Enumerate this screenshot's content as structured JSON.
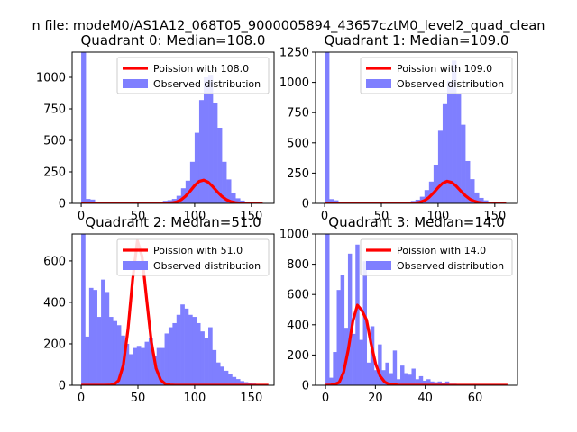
{
  "figure": {
    "suptitle": "n file: modeM0/AS1A12_068T05_9000005894_43657cztM0_level2_quad_clean"
  },
  "legend_labels": {
    "observed": "Observed distribution"
  },
  "colors": {
    "poisson": "#ff0000",
    "observed": "#7f7fff",
    "axes": "#000000"
  },
  "chart_data": [
    {
      "type": "bar",
      "title": "Quadrant 0: Median=108.0",
      "legend": {
        "position": "top-right",
        "poisson_label": "Poission with 108.0",
        "observed_label": "Observed distribution"
      },
      "xlim": [
        -8,
        170
      ],
      "ylim": [
        0,
        1200
      ],
      "xticks": [
        0,
        50,
        100,
        150
      ],
      "yticks": [
        0,
        250,
        500,
        750,
        1000
      ],
      "bin_width": 4,
      "bins": [
        [
          0,
          1200
        ],
        [
          4,
          35
        ],
        [
          8,
          30
        ],
        [
          12,
          10
        ],
        [
          16,
          8
        ],
        [
          20,
          8
        ],
        [
          24,
          6
        ],
        [
          28,
          6
        ],
        [
          32,
          5
        ],
        [
          36,
          5
        ],
        [
          40,
          5
        ],
        [
          44,
          5
        ],
        [
          48,
          5
        ],
        [
          52,
          6
        ],
        [
          56,
          5
        ],
        [
          60,
          8
        ],
        [
          64,
          10
        ],
        [
          68,
          12
        ],
        [
          72,
          20
        ],
        [
          76,
          25
        ],
        [
          80,
          35
        ],
        [
          84,
          60
        ],
        [
          88,
          120
        ],
        [
          92,
          180
        ],
        [
          96,
          330
        ],
        [
          100,
          560
        ],
        [
          104,
          820
        ],
        [
          108,
          1000
        ],
        [
          112,
          1020
        ],
        [
          116,
          800
        ],
        [
          120,
          600
        ],
        [
          124,
          330
        ],
        [
          128,
          190
        ],
        [
          132,
          80
        ],
        [
          136,
          40
        ],
        [
          140,
          22
        ],
        [
          144,
          12
        ],
        [
          148,
          8
        ],
        [
          152,
          5
        ]
      ],
      "poisson": {
        "mean": 108,
        "scale": 4800,
        "x_range": [
          0,
          160
        ]
      }
    },
    {
      "type": "bar",
      "title": "Quadrant 1: Median=109.0",
      "legend": {
        "position": "top-right",
        "poisson_label": "Poission with 109.0",
        "observed_label": "Observed distribution"
      },
      "xlim": [
        -8,
        170
      ],
      "ylim": [
        0,
        1250
      ],
      "xticks": [
        0,
        50,
        100,
        150
      ],
      "yticks": [
        0,
        250,
        500,
        750,
        1000,
        1250
      ],
      "bin_width": 4,
      "bins": [
        [
          0,
          1250
        ],
        [
          4,
          35
        ],
        [
          8,
          25
        ],
        [
          12,
          10
        ],
        [
          16,
          8
        ],
        [
          20,
          6
        ],
        [
          24,
          6
        ],
        [
          28,
          5
        ],
        [
          32,
          5
        ],
        [
          36,
          5
        ],
        [
          40,
          5
        ],
        [
          44,
          5
        ],
        [
          48,
          5
        ],
        [
          52,
          6
        ],
        [
          56,
          6
        ],
        [
          60,
          8
        ],
        [
          64,
          10
        ],
        [
          68,
          12
        ],
        [
          72,
          15
        ],
        [
          76,
          20
        ],
        [
          80,
          30
        ],
        [
          84,
          55
        ],
        [
          88,
          110
        ],
        [
          92,
          180
        ],
        [
          96,
          320
        ],
        [
          100,
          600
        ],
        [
          104,
          820
        ],
        [
          108,
          1010
        ],
        [
          112,
          1180
        ],
        [
          116,
          900
        ],
        [
          120,
          650
        ],
        [
          124,
          350
        ],
        [
          128,
          200
        ],
        [
          132,
          90
        ],
        [
          136,
          45
        ],
        [
          140,
          25
        ],
        [
          144,
          12
        ],
        [
          148,
          8
        ],
        [
          152,
          5
        ]
      ],
      "poisson": {
        "mean": 109,
        "scale": 4800,
        "x_range": [
          0,
          160
        ]
      }
    },
    {
      "type": "bar",
      "title": "Quadrant 2: Median=51.0",
      "legend": {
        "position": "top-right",
        "poisson_label": "Poission with 51.0",
        "observed_label": "Observed distribution"
      },
      "xlim": [
        -8,
        170
      ],
      "ylim": [
        0,
        730
      ],
      "xticks": [
        0,
        50,
        100,
        150
      ],
      "yticks": [
        0,
        200,
        400,
        600
      ],
      "bin_width": 3.5,
      "bins": [
        [
          0,
          730
        ],
        [
          3.5,
          235
        ],
        [
          7,
          470
        ],
        [
          10.5,
          460
        ],
        [
          14,
          330
        ],
        [
          17.5,
          510
        ],
        [
          21,
          450
        ],
        [
          24.5,
          330
        ],
        [
          28,
          310
        ],
        [
          31.5,
          290
        ],
        [
          35,
          240
        ],
        [
          38.5,
          200
        ],
        [
          42,
          150
        ],
        [
          45.5,
          180
        ],
        [
          49,
          190
        ],
        [
          52.5,
          180
        ],
        [
          56,
          210
        ],
        [
          59.5,
          230
        ],
        [
          63,
          140
        ],
        [
          66.5,
          180
        ],
        [
          70,
          180
        ],
        [
          73.5,
          250
        ],
        [
          77,
          280
        ],
        [
          80.5,
          300
        ],
        [
          84,
          340
        ],
        [
          87.5,
          390
        ],
        [
          91,
          370
        ],
        [
          94.5,
          340
        ],
        [
          98,
          330
        ],
        [
          101.5,
          300
        ],
        [
          105,
          260
        ],
        [
          108.5,
          230
        ],
        [
          112,
          280
        ],
        [
          115.5,
          170
        ],
        [
          119,
          110
        ],
        [
          122.5,
          90
        ],
        [
          126,
          70
        ],
        [
          129.5,
          55
        ],
        [
          133,
          40
        ],
        [
          136.5,
          30
        ],
        [
          140,
          20
        ],
        [
          143.5,
          15
        ],
        [
          147,
          10
        ],
        [
          150.5,
          8
        ],
        [
          154,
          5
        ],
        [
          157.5,
          4
        ],
        [
          161,
          3
        ]
      ],
      "poisson": {
        "mean": 51,
        "scale": 12500,
        "x_range": [
          0,
          165
        ]
      }
    },
    {
      "type": "bar",
      "title": "Quadrant 3: Median=14.0",
      "legend": {
        "position": "top-right",
        "poisson_label": "Poission with 14.0",
        "observed_label": "Observed distribution"
      },
      "xlim": [
        -4,
        77
      ],
      "ylim": [
        0,
        1000
      ],
      "xticks": [
        0,
        20,
        40,
        60
      ],
      "yticks": [
        0,
        200,
        400,
        600,
        800,
        1000
      ],
      "bin_width": 1.5,
      "bins": [
        [
          0,
          1000
        ],
        [
          1.5,
          50
        ],
        [
          3,
          220
        ],
        [
          4.5,
          630
        ],
        [
          6,
          730
        ],
        [
          7.5,
          380
        ],
        [
          9,
          870
        ],
        [
          10.5,
          340
        ],
        [
          12,
          930
        ],
        [
          13.5,
          300
        ],
        [
          15,
          820
        ],
        [
          16.5,
          150
        ],
        [
          18,
          390
        ],
        [
          19.5,
          100
        ],
        [
          21,
          270
        ],
        [
          22.5,
          100
        ],
        [
          24,
          150
        ],
        [
          25.5,
          80
        ],
        [
          27,
          230
        ],
        [
          28.5,
          40
        ],
        [
          30,
          130
        ],
        [
          31.5,
          80
        ],
        [
          33,
          70
        ],
        [
          34.5,
          110
        ],
        [
          36,
          40
        ],
        [
          37.5,
          60
        ],
        [
          39,
          30
        ],
        [
          40.5,
          40
        ],
        [
          42,
          25
        ],
        [
          43.5,
          20
        ],
        [
          45,
          25
        ],
        [
          46.5,
          15
        ],
        [
          48,
          25
        ],
        [
          49.5,
          10
        ],
        [
          51,
          10
        ],
        [
          52.5,
          8
        ],
        [
          54,
          6
        ],
        [
          55.5,
          5
        ],
        [
          57,
          4
        ],
        [
          58.5,
          3
        ],
        [
          60,
          3
        ],
        [
          61.5,
          2
        ],
        [
          63,
          2
        ]
      ],
      "poisson": {
        "mean": 14,
        "scale": 5000,
        "x_range": [
          0,
          73
        ]
      }
    }
  ]
}
